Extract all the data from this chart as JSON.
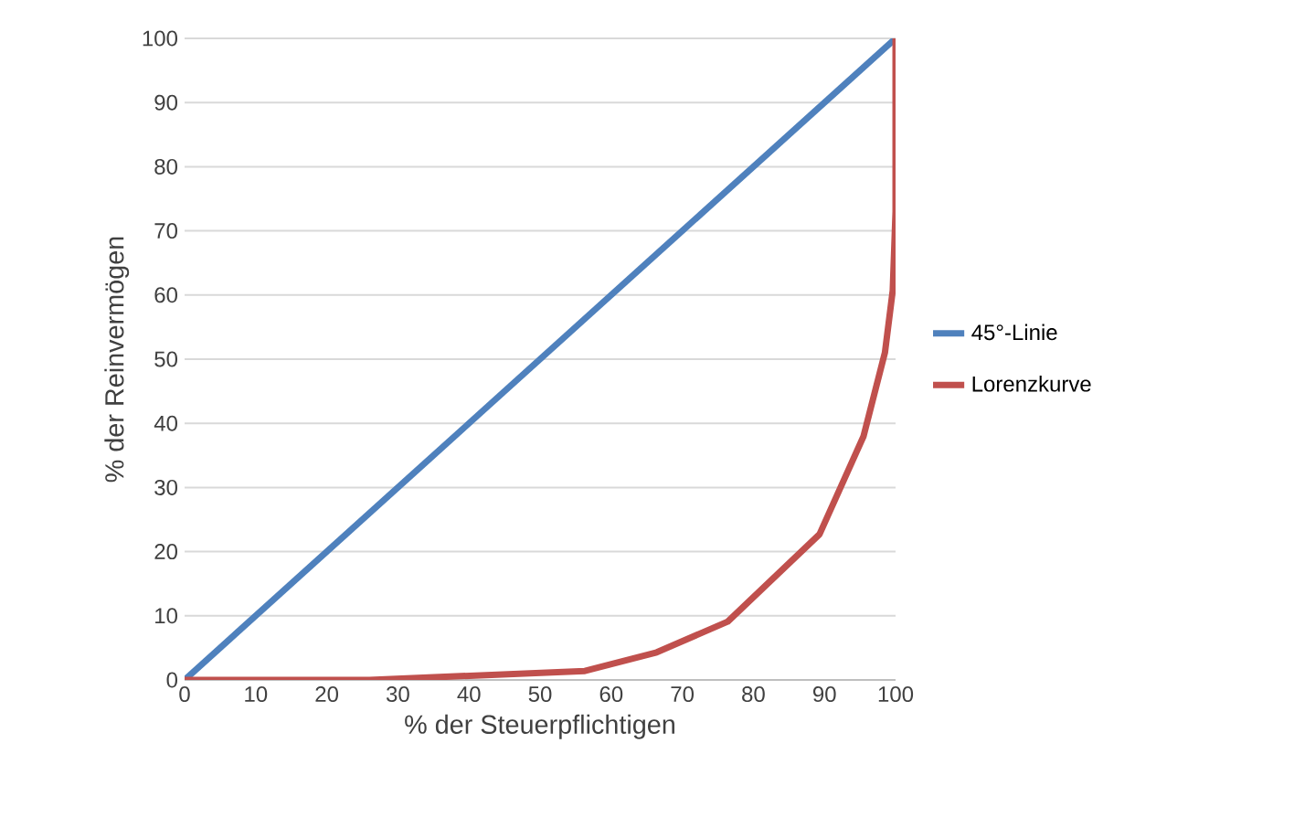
{
  "chart_data": {
    "type": "line",
    "xlabel": "% der Steuerpflichtigen",
    "ylabel": "% der Reinvermögen",
    "xlim": [
      0,
      100
    ],
    "ylim": [
      0,
      100
    ],
    "xticks": [
      0,
      10,
      20,
      30,
      40,
      50,
      60,
      70,
      80,
      90,
      100
    ],
    "yticks": [
      0,
      10,
      20,
      30,
      40,
      50,
      60,
      70,
      80,
      90,
      100
    ],
    "grid": "y",
    "legend": "right",
    "marker": "none",
    "line_style": "solid",
    "series": [
      {
        "name": "45°-Linie",
        "color": "#4f81bd",
        "x": [
          0,
          100
        ],
        "values": [
          0,
          100
        ]
      },
      {
        "name": "Lorenzkurve",
        "color": "#c0504d",
        "x": [
          0,
          26,
          56.3,
          66.4,
          76.4,
          89.3,
          95.5,
          98.5,
          99.6,
          100,
          100
        ],
        "values": [
          0,
          0,
          1.4,
          4.3,
          9.1,
          22.7,
          38,
          51,
          60.7,
          73,
          100
        ]
      }
    ]
  }
}
